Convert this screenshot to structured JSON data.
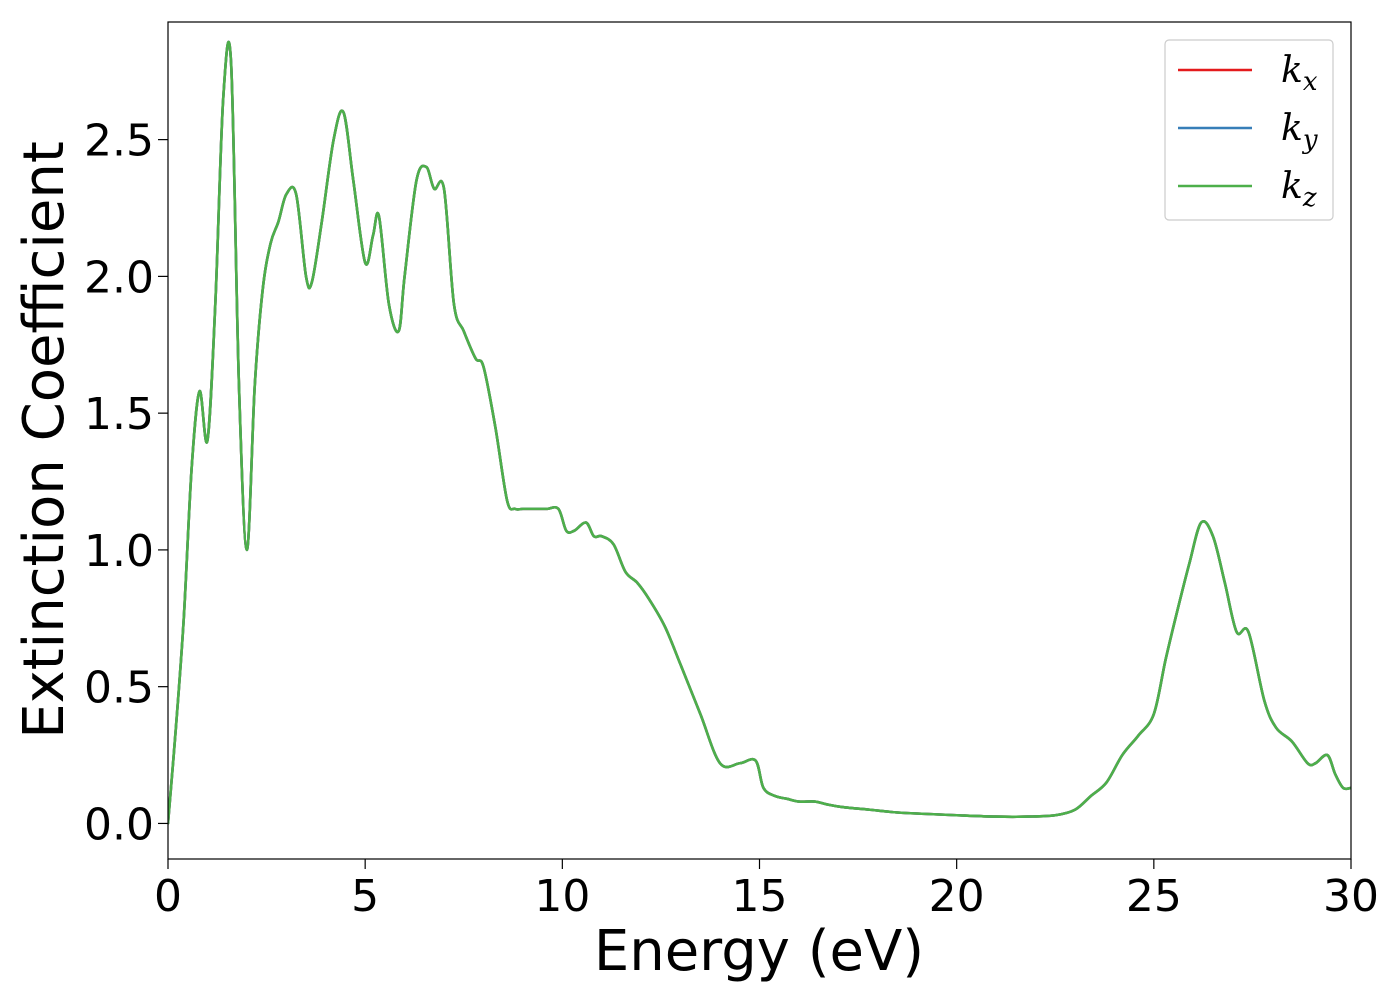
{
  "chart_data": {
    "type": "line",
    "title": "",
    "xlabel": "Energy (eV)",
    "ylabel": "Extinction Coefficient",
    "xlim": [
      0,
      30
    ],
    "ylim": [
      -0.13,
      2.93
    ],
    "xticks": [
      0,
      5,
      10,
      15,
      20,
      25,
      30
    ],
    "yticks": [
      0.0,
      0.5,
      1.0,
      1.5,
      2.0,
      2.5
    ],
    "xtick_labels": [
      "0",
      "5",
      "10",
      "15",
      "20",
      "25",
      "30"
    ],
    "ytick_labels": [
      "0.0",
      "0.5",
      "1.0",
      "1.5",
      "2.0",
      "2.5"
    ],
    "grid": false,
    "legend_position": "top-right",
    "x": [
      0,
      0.2,
      0.4,
      0.6,
      0.8,
      1.0,
      1.2,
      1.4,
      1.6,
      1.8,
      2.0,
      2.2,
      2.4,
      2.6,
      2.8,
      3.0,
      3.25,
      3.5,
      3.65,
      3.9,
      4.2,
      4.45,
      4.7,
      5.0,
      5.2,
      5.35,
      5.6,
      5.85,
      6.0,
      6.3,
      6.55,
      6.75,
      7.0,
      7.25,
      7.5,
      7.8,
      8.0,
      8.3,
      8.6,
      8.8,
      9.0,
      9.3,
      9.6,
      9.9,
      10.1,
      10.3,
      10.6,
      10.8,
      11.0,
      11.3,
      11.6,
      11.9,
      12.2,
      12.6,
      13.0,
      13.5,
      14.0,
      14.5,
      14.9,
      15.1,
      15.4,
      15.7,
      16.0,
      16.4,
      16.7,
      17.1,
      17.8,
      18.5,
      19.2,
      20.0,
      21.0,
      21.8,
      22.5,
      23.0,
      23.4,
      23.8,
      24.2,
      24.6,
      25.0,
      25.3,
      25.6,
      25.9,
      26.2,
      26.5,
      26.8,
      27.1,
      27.4,
      27.8,
      28.1,
      28.5,
      28.9,
      29.1,
      29.4,
      29.6,
      29.8,
      30.0
    ],
    "series": [
      {
        "name": "k_x",
        "color": "#e41a1c",
        "values": [
          0.0,
          0.35,
          0.75,
          1.3,
          1.58,
          1.4,
          1.9,
          2.65,
          2.78,
          1.6,
          1.0,
          1.6,
          1.95,
          2.12,
          2.2,
          2.3,
          2.3,
          2.0,
          1.98,
          2.2,
          2.5,
          2.6,
          2.35,
          2.05,
          2.15,
          2.22,
          1.9,
          1.8,
          2.0,
          2.35,
          2.4,
          2.32,
          2.32,
          1.9,
          1.8,
          1.7,
          1.67,
          1.45,
          1.18,
          1.15,
          1.15,
          1.15,
          1.15,
          1.15,
          1.07,
          1.07,
          1.1,
          1.05,
          1.05,
          1.02,
          0.92,
          0.88,
          0.82,
          0.72,
          0.58,
          0.4,
          0.22,
          0.22,
          0.23,
          0.13,
          0.1,
          0.09,
          0.08,
          0.08,
          0.07,
          0.06,
          0.05,
          0.04,
          0.035,
          0.03,
          0.025,
          0.025,
          0.03,
          0.05,
          0.1,
          0.15,
          0.25,
          0.32,
          0.4,
          0.6,
          0.78,
          0.95,
          1.1,
          1.05,
          0.88,
          0.7,
          0.7,
          0.45,
          0.35,
          0.3,
          0.22,
          0.22,
          0.25,
          0.18,
          0.13,
          0.13
        ]
      },
      {
        "name": "k_y",
        "color": "#377eb8",
        "values": [
          0.0,
          0.35,
          0.75,
          1.3,
          1.58,
          1.4,
          1.9,
          2.65,
          2.78,
          1.6,
          1.0,
          1.6,
          1.95,
          2.12,
          2.2,
          2.3,
          2.3,
          2.0,
          1.98,
          2.2,
          2.5,
          2.6,
          2.35,
          2.05,
          2.15,
          2.22,
          1.9,
          1.8,
          2.0,
          2.35,
          2.4,
          2.32,
          2.32,
          1.9,
          1.8,
          1.7,
          1.67,
          1.45,
          1.18,
          1.15,
          1.15,
          1.15,
          1.15,
          1.15,
          1.07,
          1.07,
          1.1,
          1.05,
          1.05,
          1.02,
          0.92,
          0.88,
          0.82,
          0.72,
          0.58,
          0.4,
          0.22,
          0.22,
          0.23,
          0.13,
          0.1,
          0.09,
          0.08,
          0.08,
          0.07,
          0.06,
          0.05,
          0.04,
          0.035,
          0.03,
          0.025,
          0.025,
          0.03,
          0.05,
          0.1,
          0.15,
          0.25,
          0.32,
          0.4,
          0.6,
          0.78,
          0.95,
          1.1,
          1.05,
          0.88,
          0.7,
          0.7,
          0.45,
          0.35,
          0.3,
          0.22,
          0.22,
          0.25,
          0.18,
          0.13,
          0.13
        ]
      },
      {
        "name": "k_z",
        "color": "#4daf4a",
        "values": [
          0.0,
          0.35,
          0.75,
          1.3,
          1.58,
          1.4,
          1.9,
          2.65,
          2.78,
          1.6,
          1.0,
          1.6,
          1.95,
          2.12,
          2.2,
          2.3,
          2.3,
          2.0,
          1.98,
          2.2,
          2.5,
          2.6,
          2.35,
          2.05,
          2.15,
          2.22,
          1.9,
          1.8,
          2.0,
          2.35,
          2.4,
          2.32,
          2.32,
          1.9,
          1.8,
          1.7,
          1.67,
          1.45,
          1.18,
          1.15,
          1.15,
          1.15,
          1.15,
          1.15,
          1.07,
          1.07,
          1.1,
          1.05,
          1.05,
          1.02,
          0.92,
          0.88,
          0.82,
          0.72,
          0.58,
          0.4,
          0.22,
          0.22,
          0.23,
          0.13,
          0.1,
          0.09,
          0.08,
          0.08,
          0.07,
          0.06,
          0.05,
          0.04,
          0.035,
          0.03,
          0.025,
          0.025,
          0.03,
          0.05,
          0.1,
          0.15,
          0.25,
          0.32,
          0.4,
          0.6,
          0.78,
          0.95,
          1.1,
          1.05,
          0.88,
          0.7,
          0.7,
          0.45,
          0.35,
          0.3,
          0.22,
          0.22,
          0.25,
          0.18,
          0.13,
          0.13
        ]
      }
    ]
  },
  "legend": {
    "items": [
      {
        "base": "k",
        "sub": "x"
      },
      {
        "base": "k",
        "sub": "y"
      },
      {
        "base": "k",
        "sub": "z"
      }
    ]
  }
}
